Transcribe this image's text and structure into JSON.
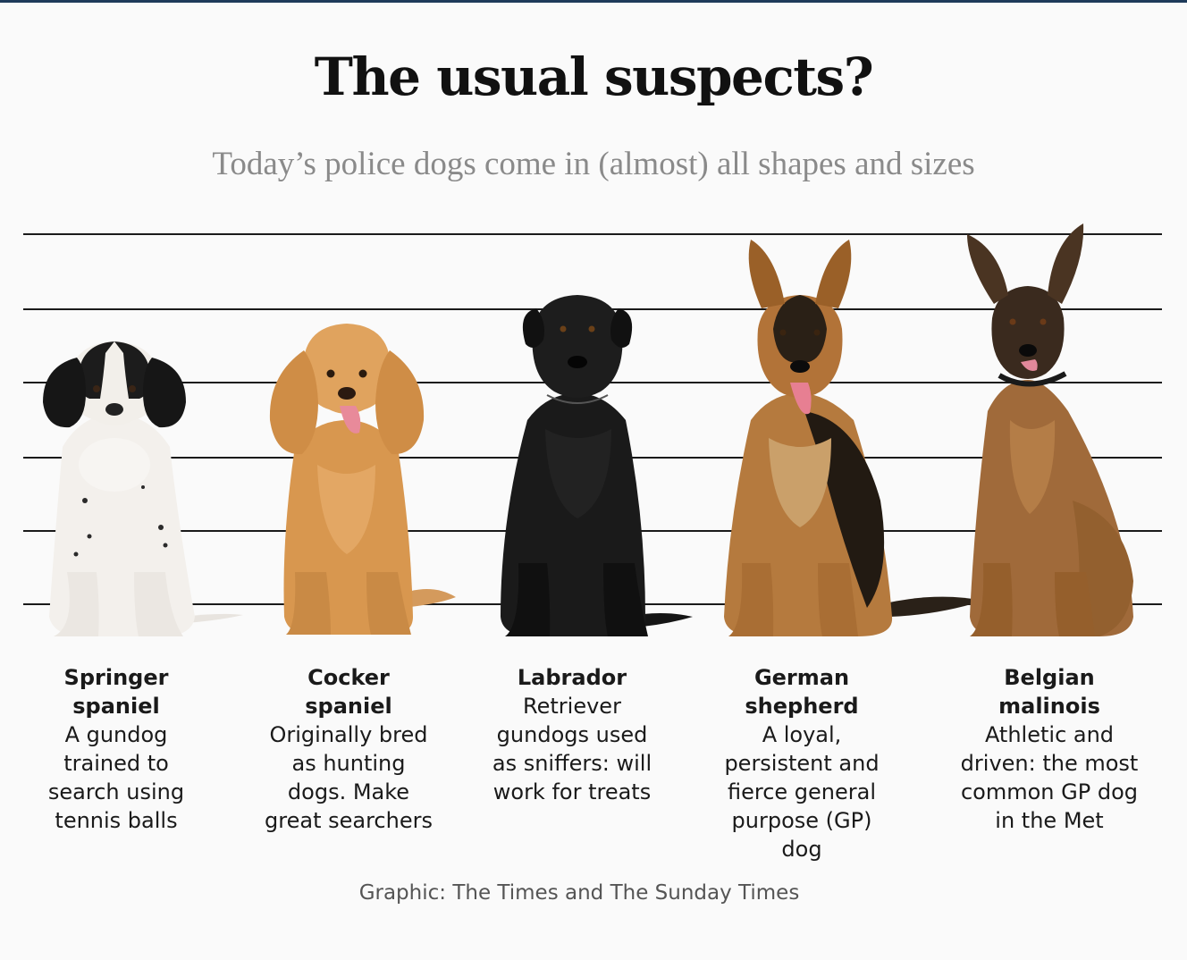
{
  "header": {
    "title": "The usual suspects?",
    "subtitle": "Today’s police dogs come in (almost) all shapes and sizes"
  },
  "dogs": [
    {
      "name": "Springer spaniel",
      "description": "A gundog trained to search using tennis balls",
      "icon": "springer-spaniel-photo"
    },
    {
      "name": "Cocker spaniel",
      "description": "Originally bred as hunting dogs. Make great searchers",
      "icon": "cocker-spaniel-photo"
    },
    {
      "name": "Labrador",
      "description": "Retriever gundogs used as sniffers: will work for treats",
      "icon": "labrador-photo"
    },
    {
      "name": "German shepherd",
      "description": "A loyal, persistent and fierce general purpose (GP) dog",
      "icon": "german-shepherd-photo"
    },
    {
      "name": "Belgian malinois",
      "description": "Athletic and driven: the most common GP dog in the Met",
      "icon": "belgian-malinois-photo"
    }
  ],
  "footer": {
    "credit": "Graphic: The Times and The Sunday Times"
  },
  "colors": {
    "top_rule": "#1e3a5a",
    "title": "#111111",
    "subtitle": "#8a8a8a",
    "lineup_lines": "#1a1a1a",
    "credit": "#555555"
  }
}
